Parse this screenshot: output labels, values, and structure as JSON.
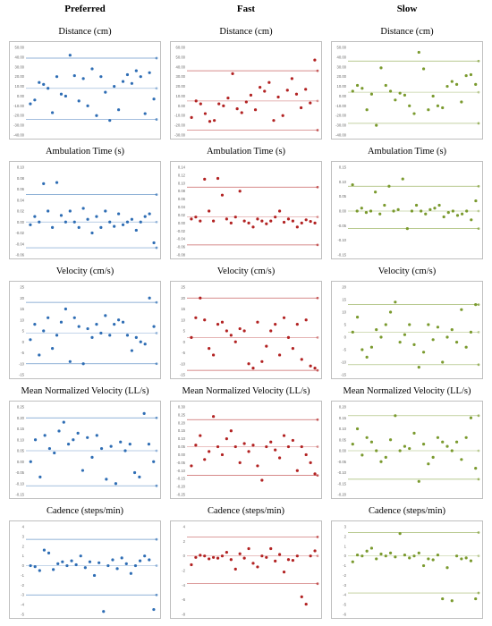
{
  "columns": [
    "Preferred",
    "Fast",
    "Slow"
  ],
  "rows": [
    "Distance (cm)",
    "Ambulation Time (s)",
    "Velocity (cm/s)",
    "Mean Normalized Velocity (LL/s)",
    "Cadence (steps/min)"
  ],
  "colors": [
    "#2e6db4",
    "#b22222",
    "#7a9a2e"
  ],
  "chart_data": [
    {
      "type": "scatter",
      "title": "Distance (cm)",
      "group": "Preferred",
      "ylim": [
        -40,
        50
      ],
      "yticks": [
        "50.00",
        "40.00",
        "30.00",
        "20.00",
        "10.00",
        "0.00",
        "-10.00",
        "-20.00",
        "-30.00",
        "-40.00"
      ],
      "lines": {
        "upper": 39,
        "mean": 8,
        "lower": -24
      },
      "x": [
        1,
        2,
        3,
        4,
        5,
        6,
        7,
        8,
        9,
        10,
        11,
        12,
        13,
        14,
        15,
        16,
        17,
        18,
        19,
        20,
        21,
        22,
        23,
        24,
        25,
        26,
        27,
        28,
        29
      ],
      "y": [
        -8,
        -4,
        14,
        12,
        8,
        -17,
        20,
        2,
        0,
        42,
        21,
        -5,
        18,
        -10,
        28,
        -20,
        20,
        4,
        -25,
        10,
        -14,
        15,
        22,
        13,
        26,
        20,
        -18,
        24,
        -3
      ]
    },
    {
      "type": "scatter",
      "title": "Distance (cm)",
      "group": "Fast",
      "ylim": [
        -30,
        60
      ],
      "yticks": [
        "60.00",
        "50.00",
        "40.00",
        "30.00",
        "20.00",
        "10.00",
        "0.00",
        "-10.00",
        "-20.00",
        "-30.00"
      ],
      "lines": {
        "upper": 36,
        "mean": 5,
        "lower": -25
      },
      "x": [
        1,
        2,
        3,
        4,
        5,
        6,
        7,
        8,
        9,
        10,
        11,
        12,
        13,
        14,
        15,
        16,
        17,
        18,
        19,
        20,
        21,
        22,
        23,
        24,
        25,
        26,
        27,
        28
      ],
      "y": [
        -12,
        5,
        2,
        -8,
        -16,
        -15,
        2,
        0,
        8,
        33,
        -3,
        -7,
        4,
        11,
        -4,
        19,
        15,
        24,
        -15,
        9,
        -10,
        16,
        28,
        12,
        -2,
        17,
        3,
        47
      ]
    },
    {
      "type": "scatter",
      "title": "Distance (cm)",
      "group": "Slow",
      "ylim": [
        -40,
        50
      ],
      "yticks": [
        "50.00",
        "40.00",
        "30.00",
        "20.00",
        "10.00",
        "0.00",
        "-10.00",
        "-20.00",
        "-30.00",
        "-40.00"
      ],
      "lines": {
        "upper": 36,
        "mean": 4,
        "lower": -28
      },
      "x": [
        1,
        2,
        3,
        4,
        5,
        6,
        7,
        8,
        9,
        10,
        11,
        12,
        13,
        14,
        15,
        16,
        17,
        18,
        19,
        20,
        21,
        22,
        23,
        24,
        25,
        26,
        27
      ],
      "y": [
        5,
        11,
        8,
        -14,
        2,
        -30,
        29,
        11,
        5,
        -4,
        3,
        1,
        -10,
        -18,
        45,
        28,
        -14,
        0,
        -10,
        -12,
        10,
        15,
        12,
        -6,
        21,
        22,
        12
      ]
    },
    {
      "type": "scatter",
      "title": "Ambulation Time (s)",
      "group": "Preferred",
      "ylim": [
        -0.06,
        0.1
      ],
      "yticks": [
        "0.10",
        "0.08",
        "0.06",
        "0.04",
        "0.02",
        "0.00",
        "-0.02",
        "-0.04",
        "-0.06"
      ],
      "lines": {
        "upper": 0.05,
        "mean": 0.0,
        "lower": -0.047
      },
      "x": [
        1,
        2,
        3,
        4,
        5,
        6,
        7,
        8,
        9,
        10,
        11,
        12,
        13,
        14,
        15,
        16,
        17,
        18,
        19,
        20,
        21,
        22,
        23,
        24,
        25,
        26,
        27,
        28,
        29
      ],
      "y": [
        -0.005,
        0.01,
        0.0,
        0.07,
        0.02,
        -0.01,
        0.072,
        0.012,
        0.0,
        0.02,
        0.0,
        -0.01,
        0.025,
        0.005,
        -0.02,
        0.01,
        -0.01,
        0.02,
        0.0,
        -0.008,
        0.015,
        -0.005,
        0.0,
        0.005,
        -0.015,
        0.0,
        0.01,
        0.015,
        -0.038
      ]
    },
    {
      "type": "scatter",
      "title": "Ambulation Time (s)",
      "group": "Fast",
      "ylim": [
        -0.08,
        0.14
      ],
      "yticks": [
        "0.14",
        "0.12",
        "0.10",
        "0.08",
        "0.06",
        "0.04",
        "0.02",
        "0.00",
        "-0.02",
        "-0.04",
        "-0.06",
        "-0.08"
      ],
      "lines": {
        "upper": 0.09,
        "mean": 0.015,
        "lower": -0.055
      },
      "x": [
        1,
        2,
        3,
        4,
        5,
        6,
        7,
        8,
        9,
        10,
        11,
        12,
        13,
        14,
        15,
        16,
        17,
        18,
        19,
        20,
        21,
        22,
        23,
        24,
        25,
        26,
        27,
        28,
        29
      ],
      "y": [
        0.01,
        0.015,
        0.005,
        0.11,
        0.03,
        0.005,
        0.112,
        0.07,
        0.01,
        0.0,
        0.015,
        0.08,
        0.005,
        0.0,
        -0.01,
        0.01,
        0.005,
        -0.002,
        0.005,
        0.015,
        0.03,
        0.002,
        0.01,
        0.005,
        -0.01,
        0.0,
        0.008,
        0.004,
        0.0
      ]
    },
    {
      "type": "scatter",
      "title": "Ambulation Time (s)",
      "group": "Slow",
      "ylim": [
        -0.15,
        0.15
      ],
      "yticks": [
        "0.15",
        "0.10",
        "0.05",
        "0.00",
        "-0.05",
        "-0.10",
        "-0.15"
      ],
      "lines": {
        "upper": 0.085,
        "mean": 0.0,
        "lower": -0.06
      },
      "x": [
        1,
        2,
        3,
        4,
        5,
        6,
        7,
        8,
        9,
        10,
        11,
        12,
        13,
        14,
        15,
        16,
        17,
        18,
        19,
        20,
        21,
        22,
        23,
        24,
        25,
        26,
        27,
        28
      ],
      "y": [
        0.09,
        0.0,
        0.01,
        -0.005,
        0.0,
        0.065,
        -0.01,
        0.02,
        0.085,
        0.0,
        0.005,
        0.11,
        -0.06,
        0.0,
        0.02,
        0.0,
        -0.01,
        0.005,
        0.01,
        0.02,
        -0.02,
        -0.005,
        0.0,
        -0.015,
        -0.01,
        0.0,
        -0.03,
        0.035
      ]
    },
    {
      "type": "scatter",
      "title": "Velocity (cm/s)",
      "group": "Preferred",
      "ylim": [
        -15,
        25
      ],
      "yticks": [
        "25",
        "20",
        "15",
        "10",
        "5",
        "0",
        "-5",
        "-10",
        "-15"
      ],
      "lines": {
        "upper": 18,
        "mean": 4,
        "lower": -10
      },
      "x": [
        1,
        2,
        3,
        4,
        5,
        6,
        7,
        8,
        9,
        10,
        11,
        12,
        13,
        14,
        15,
        16,
        17,
        18,
        19,
        20,
        21,
        22,
        23,
        24,
        25,
        26,
        27,
        28,
        29
      ],
      "y": [
        1,
        8,
        -6,
        5,
        11,
        -3,
        3,
        9,
        15,
        -9,
        11,
        7,
        -10,
        6,
        2,
        8,
        4,
        12,
        3,
        8,
        10,
        9,
        3,
        -4,
        2,
        0,
        -1,
        20,
        7
      ]
    },
    {
      "type": "scatter",
      "title": "Velocity (cm/s)",
      "group": "Fast",
      "ylim": [
        -15,
        25
      ],
      "yticks": [
        "25",
        "20",
        "15",
        "10",
        "5",
        "0",
        "-5",
        "-10",
        "-15"
      ],
      "lines": {
        "upper": 20,
        "mean": 2,
        "lower": -13
      },
      "x": [
        1,
        2,
        3,
        4,
        5,
        6,
        7,
        8,
        9,
        10,
        11,
        12,
        13,
        14,
        15,
        16,
        17,
        18,
        19,
        20,
        21,
        22,
        23,
        24,
        25,
        26,
        27,
        28,
        29
      ],
      "y": [
        2,
        11,
        20,
        10,
        -3,
        -6,
        8,
        9,
        5,
        3,
        0,
        6,
        5,
        -10,
        -12,
        9,
        -9,
        -2,
        5,
        8,
        -6,
        11,
        2,
        -3,
        8,
        -8,
        10,
        -11,
        -12
      ]
    },
    {
      "type": "scatter",
      "title": "Velocity (cm/s)",
      "group": "Slow",
      "ylim": [
        -15,
        20
      ],
      "yticks": [
        "20",
        "15",
        "10",
        "5",
        "0",
        "-5",
        "-10",
        "-15"
      ],
      "lines": {
        "upper": 13,
        "mean": 2,
        "lower": -11
      },
      "x": [
        1,
        2,
        3,
        4,
        5,
        6,
        7,
        8,
        9,
        10,
        11,
        12,
        13,
        14,
        15,
        16,
        17,
        18,
        19,
        20,
        21,
        22,
        23,
        24,
        25,
        26,
        27
      ],
      "y": [
        2,
        8,
        -5,
        -8,
        -4,
        3,
        0,
        5,
        10,
        14,
        -2,
        1,
        5,
        -3,
        -12,
        -6,
        5,
        -1,
        4,
        -10,
        0,
        3,
        -2,
        11,
        -4,
        2,
        13
      ]
    },
    {
      "type": "scatter",
      "title": "Mean Normalized Velocity (LL/s)",
      "group": "Preferred",
      "ylim": [
        -0.15,
        0.25
      ],
      "yticks": [
        "0.25",
        "0.20",
        "0.15",
        "0.10",
        "0.05",
        "0.00",
        "-0.05",
        "-0.10",
        "-0.15"
      ],
      "lines": {
        "upper": 0.2,
        "mean": 0.05,
        "lower": -0.11
      },
      "x": [
        1,
        2,
        3,
        4,
        5,
        6,
        7,
        8,
        9,
        10,
        11,
        12,
        13,
        14,
        15,
        16,
        17,
        18,
        19,
        20,
        21,
        22,
        23,
        24,
        25,
        26,
        27
      ],
      "y": [
        0.0,
        0.1,
        -0.07,
        0.12,
        0.06,
        0.04,
        0.14,
        0.18,
        0.08,
        0.1,
        0.13,
        -0.04,
        0.11,
        0.02,
        0.12,
        0.06,
        -0.08,
        0.07,
        -0.1,
        0.09,
        0.05,
        0.08,
        -0.05,
        -0.07,
        0.22,
        0.08,
        0.0
      ]
    },
    {
      "type": "scatter",
      "title": "Mean Normalized Velocity (LL/s)",
      "group": "Fast",
      "ylim": [
        -0.25,
        0.3
      ],
      "yticks": [
        "0.30",
        "0.25",
        "0.20",
        "0.15",
        "0.10",
        "0.05",
        "0.00",
        "-0.05",
        "-0.10",
        "-0.15",
        "-0.20",
        "-0.25"
      ],
      "lines": {
        "upper": 0.22,
        "mean": 0.05,
        "lower": -0.13
      },
      "x": [
        1,
        2,
        3,
        4,
        5,
        6,
        7,
        8,
        9,
        10,
        11,
        12,
        13,
        14,
        15,
        16,
        17,
        18,
        19,
        20,
        21,
        22,
        23,
        24,
        25,
        26,
        27,
        28,
        29
      ],
      "y": [
        -0.07,
        0.06,
        0.12,
        -0.03,
        0.02,
        0.24,
        0.05,
        0.0,
        0.1,
        0.15,
        0.05,
        -0.05,
        0.07,
        0.02,
        0.06,
        -0.07,
        -0.16,
        0.05,
        0.08,
        0.03,
        -0.02,
        0.12,
        0.05,
        0.09,
        -0.1,
        0.05,
        0.0,
        -0.05,
        -0.12
      ]
    },
    {
      "type": "scatter",
      "title": "Mean Normalized Velocity (LL/s)",
      "group": "Slow",
      "ylim": [
        -0.2,
        0.2
      ],
      "yticks": [
        "0.20",
        "0.15",
        "0.10",
        "0.05",
        "0.00",
        "-0.05",
        "-0.10",
        "-0.15",
        "-0.20"
      ],
      "lines": {
        "upper": 0.16,
        "mean": 0.0,
        "lower": -0.13
      },
      "x": [
        1,
        2,
        3,
        4,
        5,
        6,
        7,
        8,
        9,
        10,
        11,
        12,
        13,
        14,
        15,
        16,
        17,
        18,
        19,
        20,
        21,
        22,
        23,
        24,
        25,
        26,
        27
      ],
      "y": [
        0.03,
        0.1,
        -0.02,
        0.06,
        0.04,
        0.0,
        -0.05,
        -0.03,
        0.05,
        0.16,
        0.0,
        0.02,
        0.01,
        0.08,
        -0.14,
        0.03,
        -0.06,
        -0.03,
        0.06,
        0.04,
        0.02,
        0.0,
        0.04,
        -0.04,
        0.06,
        0.15,
        -0.08
      ]
    },
    {
      "type": "scatter",
      "title": "Cadence (steps/min)",
      "group": "Preferred",
      "ylim": [
        -5,
        4
      ],
      "yticks": [
        "4",
        "3",
        "2",
        "1",
        "0",
        "-1",
        "-2",
        "-3",
        "-4",
        "-5"
      ],
      "lines": {
        "upper": 2.7,
        "mean": 0.0,
        "lower": -3.0
      },
      "x": [
        1,
        2,
        3,
        4,
        5,
        6,
        7,
        8,
        9,
        10,
        11,
        12,
        13,
        14,
        15,
        16,
        17,
        18,
        19,
        20,
        21,
        22,
        23,
        24,
        25,
        26,
        27,
        28
      ],
      "y": [
        0.0,
        -0.1,
        -0.5,
        1.6,
        1.3,
        -0.4,
        0.2,
        0.4,
        0.0,
        0.5,
        0.1,
        1.0,
        -0.2,
        0.4,
        -1.0,
        0.3,
        -4.7,
        0.0,
        0.6,
        -0.3,
        0.8,
        0.2,
        -0.8,
        0.0,
        0.5,
        1.0,
        0.6,
        -4.5
      ]
    },
    {
      "type": "scatter",
      "title": "Cadence (steps/min)",
      "group": "Fast",
      "ylim": [
        -8,
        4
      ],
      "yticks": [
        "4",
        "2",
        "0",
        "-2",
        "-4",
        "-6",
        "-8"
      ],
      "lines": {
        "upper": 2.6,
        "mean": 0.0,
        "lower": -3.8
      },
      "x": [
        1,
        2,
        3,
        4,
        5,
        6,
        7,
        8,
        9,
        10,
        11,
        12,
        13,
        14,
        15,
        16,
        17,
        18,
        19,
        20,
        21,
        22,
        23,
        24,
        25,
        26,
        27,
        28,
        29
      ],
      "y": [
        -1.2,
        -0.2,
        0.1,
        0.0,
        -0.4,
        -0.2,
        -0.3,
        0.0,
        0.5,
        -0.5,
        -1.8,
        0.3,
        -0.3,
        1.0,
        -1.0,
        -1.5,
        0.0,
        -0.2,
        1.0,
        -0.7,
        0.2,
        -2.2,
        -0.5,
        -0.6,
        0.0,
        -5.6,
        -6.6,
        0.0,
        0.7
      ]
    },
    {
      "type": "scatter",
      "title": "Cadence (steps/min)",
      "group": "Slow",
      "ylim": [
        -6,
        3
      ],
      "yticks": [
        "3",
        "2",
        "1",
        "0",
        "-1",
        "-2",
        "-3",
        "-4",
        "-5",
        "-6"
      ],
      "lines": {
        "upper": 2.4,
        "mean": 0.0,
        "lower": -3.8
      },
      "x": [
        1,
        2,
        3,
        4,
        5,
        6,
        7,
        8,
        9,
        10,
        11,
        12,
        13,
        14,
        15,
        16,
        17,
        18,
        19,
        20,
        21,
        22,
        23,
        24,
        25,
        26,
        27
      ],
      "y": [
        -0.6,
        0.1,
        0.0,
        0.5,
        0.8,
        -0.3,
        0.2,
        0.0,
        0.3,
        -0.1,
        2.3,
        0.1,
        -0.2,
        0.0,
        0.3,
        -1.0,
        -0.3,
        -0.4,
        0.1,
        -4.4,
        -1.2,
        -4.6,
        0.0,
        -0.3,
        -0.2,
        -0.5,
        -4.4
      ]
    }
  ]
}
